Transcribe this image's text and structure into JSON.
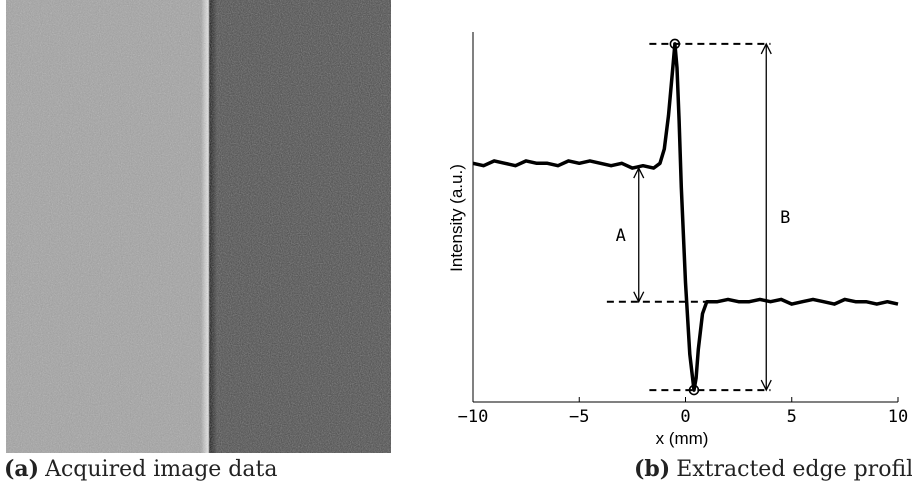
{
  "captions": {
    "a_tag": "(a)",
    "a_text": "Acquired image data",
    "b_tag": "(b)",
    "b_text": "Extracted edge profile"
  },
  "image_panel": {
    "left_tone": "#a3a3a3",
    "right_tone": "#4b4b4b"
  },
  "chart_data": {
    "type": "line",
    "title": "",
    "xlabel": "x (mm)",
    "ylabel": "Intensity (a.u.)",
    "xlim": [
      -10,
      10
    ],
    "ylim": [
      -0.2,
      1.35
    ],
    "xticks": [
      -10,
      -5,
      0,
      5,
      10
    ],
    "grid": false,
    "y_ticks_shown": false,
    "series": [
      {
        "x": [
          -10,
          -9.5,
          -9,
          -8.5,
          -8,
          -7.5,
          -7,
          -6.5,
          -6,
          -5.5,
          -5,
          -4.5,
          -4,
          -3.5,
          -3,
          -2.5,
          -2,
          -1.5,
          -1.2,
          -1.0,
          -0.8,
          -0.6,
          -0.5,
          -0.4,
          -0.3,
          -0.2,
          0,
          0.2,
          0.4,
          0.5,
          0.6,
          0.8,
          1.0,
          1.5,
          2,
          2.5,
          3,
          3.5,
          4,
          4.5,
          5,
          5.5,
          6,
          6.5,
          7,
          7.5,
          8,
          8.5,
          9,
          9.5,
          10
        ],
        "y": [
          0.8,
          0.79,
          0.81,
          0.8,
          0.79,
          0.81,
          0.8,
          0.8,
          0.79,
          0.81,
          0.8,
          0.81,
          0.8,
          0.79,
          0.8,
          0.78,
          0.79,
          0.78,
          0.8,
          0.86,
          1.0,
          1.2,
          1.3,
          1.2,
          0.98,
          0.7,
          0.3,
          0.0,
          -0.15,
          -0.1,
          0.02,
          0.17,
          0.22,
          0.22,
          0.23,
          0.22,
          0.22,
          0.23,
          0.22,
          0.23,
          0.21,
          0.22,
          0.23,
          0.22,
          0.21,
          0.23,
          0.22,
          0.22,
          0.21,
          0.22,
          0.21
        ]
      }
    ],
    "markers": [
      {
        "x": -0.5,
        "y": 1.3
      },
      {
        "x": 0.4,
        "y": -0.15
      }
    ],
    "annotations": {
      "A": {
        "label": "A",
        "x": -2.2,
        "y_from": 0.78,
        "y_to": 0.22
      },
      "B": {
        "label": "B",
        "x": 3.8,
        "y_from": 1.3,
        "y_to": -0.15
      },
      "ref_lines": [
        {
          "y": 1.3,
          "x_from": -1.7,
          "x_to": 4.0
        },
        {
          "y": 0.22,
          "x_from": -3.7,
          "x_to": 1.2
        },
        {
          "y": -0.15,
          "x_from": -1.7,
          "x_to": 4.0
        }
      ]
    }
  }
}
